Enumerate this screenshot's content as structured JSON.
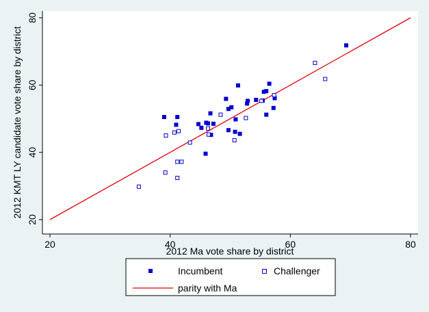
{
  "chart_data": {
    "type": "scatter",
    "xlabel": "2012 Ma vote share by district",
    "ylabel": "2012 KMT LY candidate vote share by district",
    "xlim": [
      20,
      80
    ],
    "ylim": [
      20,
      80
    ],
    "xticks": [
      "20",
      "40",
      "60",
      "80"
    ],
    "yticks": [
      "20",
      "40",
      "60",
      "80"
    ],
    "grid": false,
    "legend_position": "bottom",
    "series": [
      {
        "name": "Incumbent",
        "marker": "filled-square",
        "color": "#0000cc",
        "points": [
          [
            39,
            50.5
          ],
          [
            41.2,
            50.5
          ],
          [
            41,
            48.2
          ],
          [
            44.7,
            48.4
          ],
          [
            45.2,
            47.3
          ],
          [
            46,
            48.8
          ],
          [
            46.3,
            48.6
          ],
          [
            46.7,
            51.6
          ],
          [
            46.8,
            45.2
          ],
          [
            47.2,
            48.5
          ],
          [
            45.9,
            39.6
          ],
          [
            49.3,
            55.9
          ],
          [
            49.7,
            52.9
          ],
          [
            49.7,
            46.6
          ],
          [
            50.2,
            53.4
          ],
          [
            50.8,
            46.1
          ],
          [
            51.3,
            59.9
          ],
          [
            51.6,
            45.5
          ],
          [
            52.9,
            55.3
          ],
          [
            52.8,
            54.5
          ],
          [
            54.3,
            55.6
          ],
          [
            55.4,
            55.4
          ],
          [
            55.6,
            58
          ],
          [
            56,
            58.2
          ],
          [
            56.5,
            60.4
          ],
          [
            56,
            51.2
          ],
          [
            57.2,
            53.2
          ],
          [
            57.4,
            56.1
          ],
          [
            69.3,
            71.8
          ],
          [
            50.9,
            49.8
          ]
        ]
      },
      {
        "name": "Challenger",
        "marker": "hollow-square",
        "color": "#0000cc",
        "points": [
          [
            34.8,
            29.8
          ],
          [
            39.2,
            34
          ],
          [
            39.3,
            45
          ],
          [
            40.7,
            45.9
          ],
          [
            41.4,
            46.3
          ],
          [
            41.2,
            37.2
          ],
          [
            41.9,
            37.2
          ],
          [
            41.2,
            32.4
          ],
          [
            43.3,
            42.9
          ],
          [
            46.3,
            47.1
          ],
          [
            48.4,
            51.2
          ],
          [
            50.7,
            43.6
          ],
          [
            52.6,
            50.2
          ],
          [
            55.2,
            55.3
          ],
          [
            57.3,
            57
          ],
          [
            64.1,
            66.6
          ],
          [
            65.8,
            61.8
          ],
          [
            46.4,
            45.3
          ]
        ]
      },
      {
        "name": "parity with Ma",
        "marker": "line",
        "color": "#e0000b",
        "points": [
          [
            20,
            20
          ],
          [
            80,
            80
          ]
        ]
      }
    ]
  }
}
